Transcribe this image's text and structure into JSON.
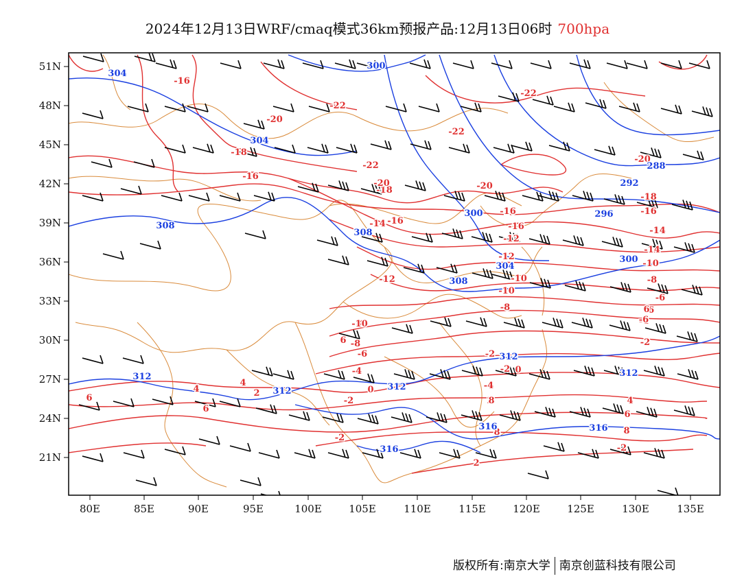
{
  "header": {
    "title": "2024年12月13日WRF/cmaq模式36km预报产品:12月13日06时",
    "level": "700hpa"
  },
  "colors": {
    "temperature": "#e03030",
    "height": "#1a3fe0",
    "boundary": "#d98a3a",
    "barb": "#000000"
  },
  "map": {
    "lon_labels": [
      "80E",
      "85E",
      "90E",
      "95E",
      "100E",
      "105E",
      "110E",
      "115E",
      "120E",
      "125E",
      "130E",
      "135E"
    ],
    "lat_labels": [
      "51N",
      "48N",
      "45N",
      "42N",
      "39N",
      "36N",
      "33N",
      "30N",
      "27N",
      "24N",
      "21N"
    ],
    "temp_labels": [
      "-16",
      "-20",
      "-18",
      "-22",
      "-22",
      "-22",
      "-22",
      "-16",
      "-18",
      "-20",
      "-20",
      "-14",
      "-16",
      "-16",
      "-16",
      "-20",
      "-18",
      "-16",
      "-14",
      "-12",
      "-12",
      "-14",
      "-12",
      "-10",
      "-10",
      "-8",
      "-10",
      "-8",
      "-6",
      "-8",
      "-6",
      "-4",
      "-10",
      "-8",
      "-6",
      "-4",
      "-2",
      "0",
      "-2",
      "-2",
      "-4",
      "-6",
      "-4",
      "-2",
      "-2",
      "0",
      "2",
      "4",
      "6",
      "8",
      "-2",
      "2",
      "4",
      "6",
      "4",
      "6",
      "2",
      "4",
      "6",
      "8",
      "8",
      "6"
    ],
    "height_labels": [
      "304",
      "300",
      "304",
      "308",
      "308",
      "300",
      "296",
      "292",
      "288",
      "304",
      "300",
      "308",
      "312",
      "312",
      "312",
      "312",
      "312",
      "316",
      "316",
      "316"
    ]
  },
  "footer": {
    "copyright": "版权所有:南京大学",
    "company": "南京创蓝科技有限公司"
  }
}
